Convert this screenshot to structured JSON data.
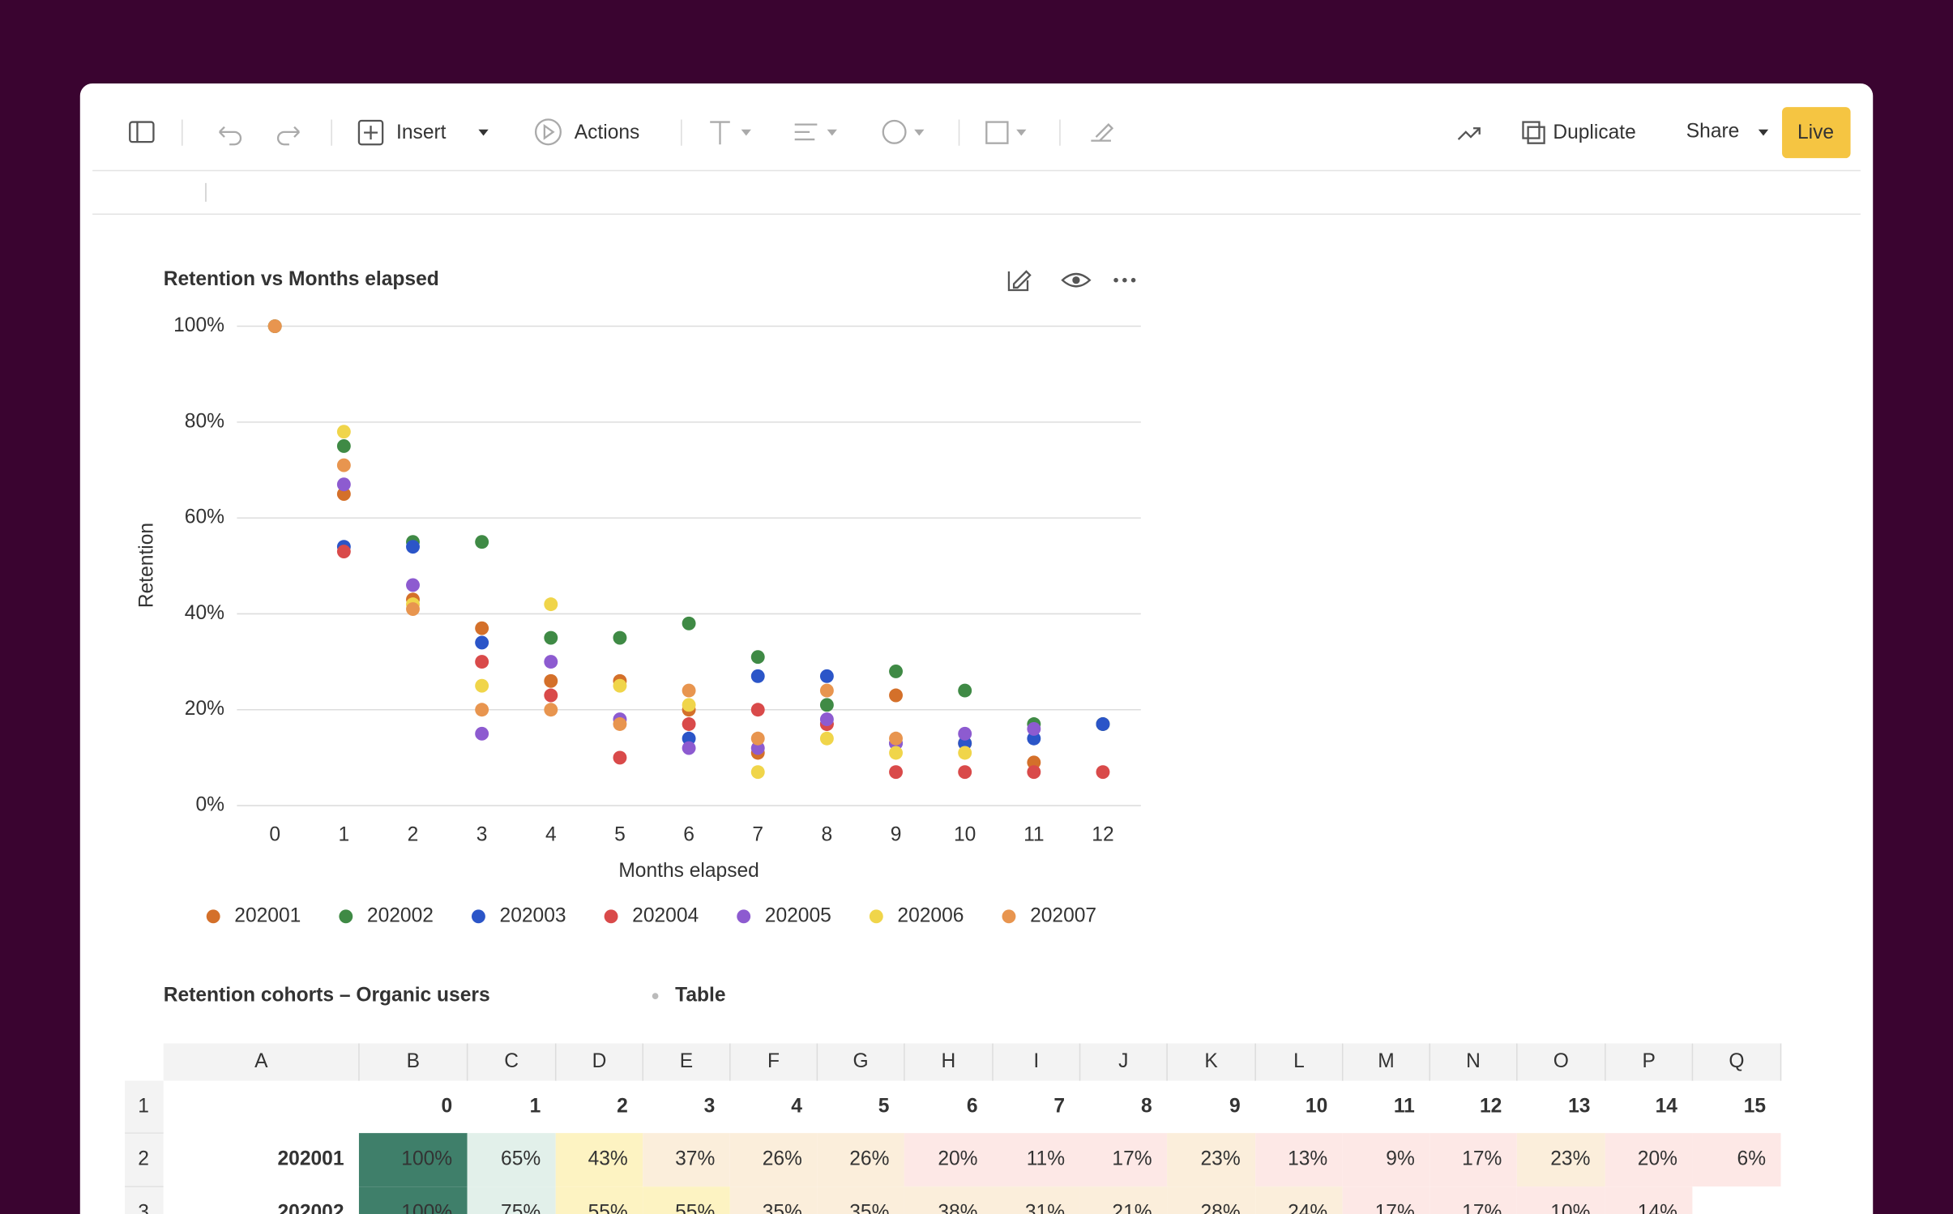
{
  "toolbar": {
    "insert": "Insert",
    "actions": "Actions",
    "duplicate": "Duplicate",
    "share": "Share",
    "live": "Live"
  },
  "chart_data": {
    "type": "scatter",
    "title": "Retention vs Months elapsed",
    "x_label": "Months elapsed",
    "y_label": "Retention",
    "x": [
      0,
      1,
      2,
      3,
      4,
      5,
      6,
      7,
      8,
      9,
      10,
      11,
      12
    ],
    "xlim": [
      -0.55,
      12.55
    ],
    "xticks": [
      0,
      1,
      2,
      3,
      4,
      5,
      6,
      7,
      8,
      9,
      10,
      11,
      12
    ],
    "ylim": [
      0,
      100
    ],
    "yticks": [
      {
        "value": 0,
        "label": "0%"
      },
      {
        "value": 20,
        "label": "20%"
      },
      {
        "value": 40,
        "label": "40%"
      },
      {
        "value": 60,
        "label": "60%"
      },
      {
        "value": 80,
        "label": "80%"
      },
      {
        "value": 100,
        "label": "100%"
      }
    ],
    "grid": true,
    "series": [
      {
        "name": "202001",
        "color": "#d4702a",
        "values": [
          100,
          65,
          43,
          37,
          26,
          26,
          20,
          11,
          17,
          23,
          13,
          9,
          17
        ]
      },
      {
        "name": "202002",
        "color": "#3f8a45",
        "values": [
          100,
          75,
          55,
          55,
          35,
          35,
          38,
          31,
          21,
          28,
          24,
          17,
          17
        ]
      },
      {
        "name": "202003",
        "color": "#2b55c8",
        "values": [
          null,
          54,
          54,
          34,
          null,
          null,
          14,
          27,
          27,
          13,
          13,
          14,
          17
        ]
      },
      {
        "name": "202004",
        "color": "#d94a4a",
        "values": [
          null,
          53,
          null,
          30,
          23,
          10,
          17,
          20,
          17,
          7,
          7,
          7,
          7
        ]
      },
      {
        "name": "202005",
        "color": "#8d5bd0",
        "values": [
          null,
          67,
          46,
          15,
          30,
          18,
          12,
          12,
          18,
          13,
          15,
          16,
          null
        ]
      },
      {
        "name": "202006",
        "color": "#f0d54a",
        "values": [
          null,
          78,
          42,
          25,
          42,
          25,
          21,
          7,
          14,
          11,
          11,
          null,
          null
        ]
      },
      {
        "name": "202007",
        "color": "#e8954f",
        "values": [
          100,
          71,
          41,
          20,
          20,
          17,
          24,
          14,
          24,
          14,
          null,
          null,
          null
        ]
      }
    ]
  },
  "table_section": {
    "title": "Retention cohorts – Organic users",
    "tag": "Table",
    "columns": [
      "A",
      "B",
      "C",
      "D",
      "E",
      "F",
      "G",
      "H",
      "I",
      "J",
      "K",
      "L",
      "M",
      "N",
      "O",
      "P",
      "Q"
    ],
    "rows": [
      {
        "number": "1",
        "cells": [
          "",
          "0",
          "1",
          "2",
          "3",
          "4",
          "5",
          "6",
          "7",
          "8",
          "9",
          "10",
          "11",
          "12",
          "13",
          "14",
          "15"
        ]
      },
      {
        "number": "2",
        "cells": [
          "202001",
          "100%",
          "65%",
          "43%",
          "37%",
          "26%",
          "26%",
          "20%",
          "11%",
          "17%",
          "23%",
          "13%",
          "9%",
          "17%",
          "23%",
          "20%",
          "6%"
        ],
        "colors": [
          "#ffffff",
          "#3f7f6a",
          "#e2f0ea",
          "#fdf3c2",
          "#fbeedb",
          "#fbeedb",
          "#fbeedb",
          "#fde8e6",
          "#fde8e6",
          "#fde8e6",
          "#fbeedb",
          "#fde8e6",
          "#fde8e6",
          "#fde8e6",
          "#fbeedb",
          "#fde8e6",
          "#fde8e6"
        ]
      },
      {
        "number": "3",
        "cells": [
          "202002",
          "100%",
          "75%",
          "55%",
          "55%",
          "35%",
          "35%",
          "38%",
          "31%",
          "21%",
          "28%",
          "24%",
          "17%",
          "17%",
          "10%",
          "14%",
          ""
        ],
        "colors": [
          "#ffffff",
          "#3f7f6a",
          "#e2f0ea",
          "#fdf3c2",
          "#fdf3c2",
          "#fbeedb",
          "#fbeedb",
          "#fbeedb",
          "#fbeedb",
          "#fbeedb",
          "#fbeedb",
          "#fbeedb",
          "#fde8e6",
          "#fde8e6",
          "#fde8e6",
          "#fde8e6",
          "#ffffff"
        ]
      }
    ]
  }
}
